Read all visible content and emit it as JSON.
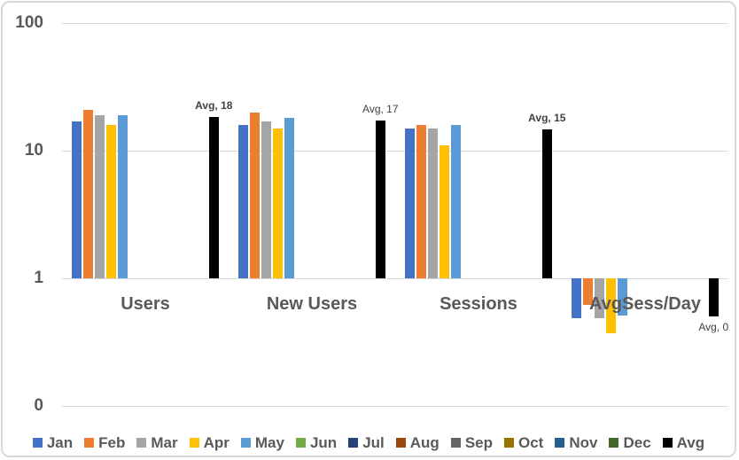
{
  "chart_data": {
    "type": "bar",
    "title": "",
    "y_axis": {
      "scale": "log",
      "range": [
        0.1,
        100
      ],
      "bars_base_value": 1,
      "ticks": [
        {
          "label": "100",
          "value": 100
        },
        {
          "label": "10",
          "value": 10
        },
        {
          "label": "1",
          "value": 1
        },
        {
          "label": "0",
          "value": 0.1
        }
      ]
    },
    "categories": [
      "Users",
      "New Users",
      "Sessions",
      "AvgSess/Day"
    ],
    "series": [
      {
        "name": "Jan",
        "color": "#4472C4",
        "values": [
          17,
          16,
          15,
          0.49
        ]
      },
      {
        "name": "Feb",
        "color": "#ED7D31",
        "values": [
          21,
          20,
          16,
          0.62
        ]
      },
      {
        "name": "Mar",
        "color": "#A5A5A5",
        "values": [
          19,
          17,
          15,
          0.49
        ]
      },
      {
        "name": "Apr",
        "color": "#FFC000",
        "values": [
          16,
          15,
          11,
          0.37
        ]
      },
      {
        "name": "May",
        "color": "#5B9BD5",
        "values": [
          19,
          18,
          16,
          0.51
        ]
      },
      {
        "name": "Jun",
        "color": "#70AD47",
        "values": [
          null,
          null,
          null,
          null
        ]
      },
      {
        "name": "Jul",
        "color": "#264478",
        "values": [
          null,
          null,
          null,
          null
        ]
      },
      {
        "name": "Aug",
        "color": "#9E480E",
        "values": [
          null,
          null,
          null,
          null
        ]
      },
      {
        "name": "Sep",
        "color": "#636363",
        "values": [
          null,
          null,
          null,
          null
        ]
      },
      {
        "name": "Oct",
        "color": "#997300",
        "values": [
          null,
          null,
          null,
          null
        ]
      },
      {
        "name": "Nov",
        "color": "#255E91",
        "values": [
          null,
          null,
          null,
          null
        ]
      },
      {
        "name": "Dec",
        "color": "#43682B",
        "values": [
          null,
          null,
          null,
          null
        ]
      },
      {
        "name": "Avg",
        "color": "#000000",
        "values": [
          18.4,
          17.2,
          14.6,
          0.5
        ]
      }
    ],
    "avg_data_labels": [
      {
        "text": "Avg, 18",
        "bold": true,
        "position": "above"
      },
      {
        "text": "Avg, 17",
        "bold": false,
        "position": "above"
      },
      {
        "text": "Avg, 15",
        "bold": true,
        "position": "above"
      },
      {
        "text": "Avg, 0",
        "bold": false,
        "position": "below"
      }
    ],
    "legend": {
      "position": "bottom",
      "entries": [
        "Jan",
        "Feb",
        "Mar",
        "Apr",
        "May",
        "Jun",
        "Jul",
        "Aug",
        "Sep",
        "Oct",
        "Nov",
        "Dec",
        "Avg"
      ]
    },
    "grid": true
  },
  "colors": {
    "gridline": "#D9D9D9",
    "axis_text": "#595959",
    "category_text": "#595959",
    "data_label_text": "#404040",
    "legend_text": "#595959",
    "frame_border": "#D8D8D8",
    "background": "#FFFFFF"
  }
}
